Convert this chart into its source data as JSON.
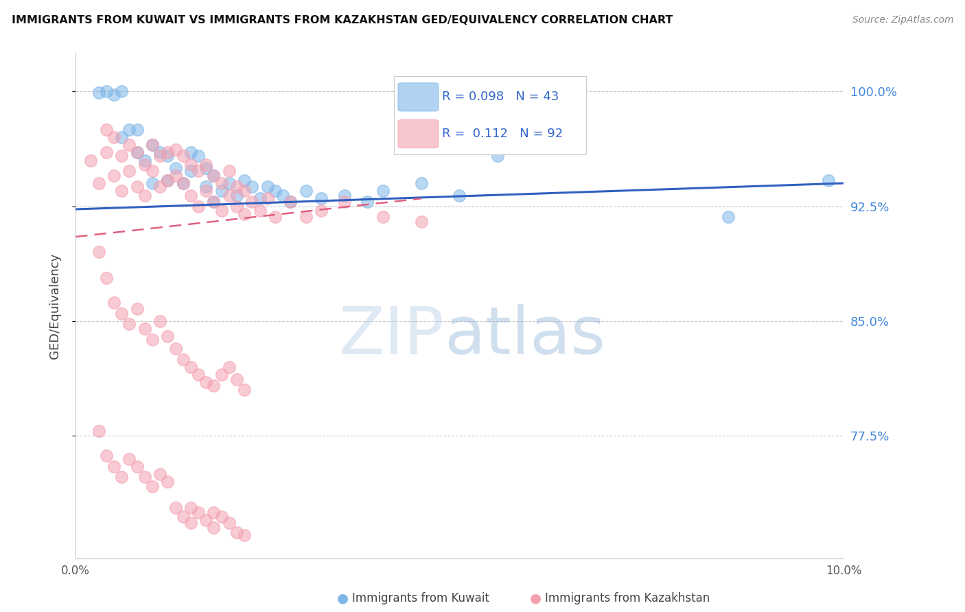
{
  "title": "IMMIGRANTS FROM KUWAIT VS IMMIGRANTS FROM KAZAKHSTAN GED/EQUIVALENCY CORRELATION CHART",
  "source": "Source: ZipAtlas.com",
  "ylabel": "GED/Equivalency",
  "ytick_vals": [
    0.775,
    0.85,
    0.925,
    1.0
  ],
  "xmin": 0.0,
  "xmax": 0.1,
  "ymin": 0.695,
  "ymax": 1.025,
  "legend_blue_r": "R = 0.098",
  "legend_blue_n": "N = 43",
  "legend_pink_r": "R =  0.112",
  "legend_pink_n": "N = 92",
  "blue_color": "#7EB6E8",
  "pink_color": "#F4A0B0",
  "trend_blue_color": "#3060C0",
  "trend_pink_color": "#E06080",
  "blue_scatter_x": [
    0.003,
    0.004,
    0.005,
    0.006,
    0.006,
    0.007,
    0.008,
    0.008,
    0.009,
    0.01,
    0.01,
    0.011,
    0.012,
    0.012,
    0.013,
    0.014,
    0.015,
    0.015,
    0.016,
    0.017,
    0.017,
    0.018,
    0.018,
    0.019,
    0.02,
    0.021,
    0.022,
    0.023,
    0.024,
    0.025,
    0.026,
    0.027,
    0.028,
    0.03,
    0.032,
    0.035,
    0.038,
    0.04,
    0.045,
    0.05,
    0.055,
    0.085,
    0.098
  ],
  "blue_scatter_y": [
    0.999,
    1.0,
    0.998,
    0.97,
    1.0,
    0.975,
    0.975,
    0.96,
    0.955,
    0.965,
    0.94,
    0.96,
    0.958,
    0.942,
    0.95,
    0.94,
    0.96,
    0.948,
    0.958,
    0.938,
    0.95,
    0.928,
    0.945,
    0.935,
    0.94,
    0.932,
    0.942,
    0.938,
    0.93,
    0.938,
    0.935,
    0.932,
    0.928,
    0.935,
    0.93,
    0.932,
    0.928,
    0.935,
    0.94,
    0.932,
    0.958,
    0.918,
    0.942
  ],
  "pink_scatter_x": [
    0.002,
    0.003,
    0.004,
    0.004,
    0.005,
    0.005,
    0.006,
    0.006,
    0.007,
    0.007,
    0.008,
    0.008,
    0.009,
    0.009,
    0.01,
    0.01,
    0.011,
    0.011,
    0.012,
    0.012,
    0.013,
    0.013,
    0.014,
    0.014,
    0.015,
    0.015,
    0.016,
    0.016,
    0.017,
    0.017,
    0.018,
    0.018,
    0.019,
    0.019,
    0.02,
    0.02,
    0.021,
    0.021,
    0.022,
    0.022,
    0.023,
    0.024,
    0.025,
    0.026,
    0.028,
    0.03,
    0.032,
    0.035,
    0.04,
    0.045,
    0.003,
    0.004,
    0.005,
    0.006,
    0.007,
    0.008,
    0.009,
    0.01,
    0.011,
    0.012,
    0.013,
    0.014,
    0.015,
    0.016,
    0.017,
    0.018,
    0.019,
    0.02,
    0.021,
    0.022,
    0.003,
    0.004,
    0.005,
    0.006,
    0.007,
    0.008,
    0.009,
    0.01,
    0.011,
    0.012,
    0.013,
    0.014,
    0.015,
    0.016,
    0.017,
    0.018,
    0.019,
    0.02,
    0.021,
    0.022,
    0.015,
    0.018
  ],
  "pink_scatter_y": [
    0.955,
    0.94,
    0.96,
    0.975,
    0.97,
    0.945,
    0.958,
    0.935,
    0.965,
    0.948,
    0.96,
    0.938,
    0.952,
    0.932,
    0.948,
    0.965,
    0.938,
    0.958,
    0.942,
    0.96,
    0.945,
    0.962,
    0.94,
    0.958,
    0.932,
    0.952,
    0.925,
    0.948,
    0.935,
    0.952,
    0.928,
    0.945,
    0.922,
    0.94,
    0.932,
    0.948,
    0.925,
    0.938,
    0.92,
    0.935,
    0.928,
    0.922,
    0.93,
    0.918,
    0.928,
    0.918,
    0.922,
    0.928,
    0.918,
    0.915,
    0.895,
    0.878,
    0.862,
    0.855,
    0.848,
    0.858,
    0.845,
    0.838,
    0.85,
    0.84,
    0.832,
    0.825,
    0.82,
    0.815,
    0.81,
    0.808,
    0.815,
    0.82,
    0.812,
    0.805,
    0.778,
    0.762,
    0.755,
    0.748,
    0.76,
    0.755,
    0.748,
    0.742,
    0.75,
    0.745,
    0.728,
    0.722,
    0.718,
    0.725,
    0.72,
    0.715,
    0.722,
    0.718,
    0.712,
    0.71,
    0.728,
    0.725
  ]
}
